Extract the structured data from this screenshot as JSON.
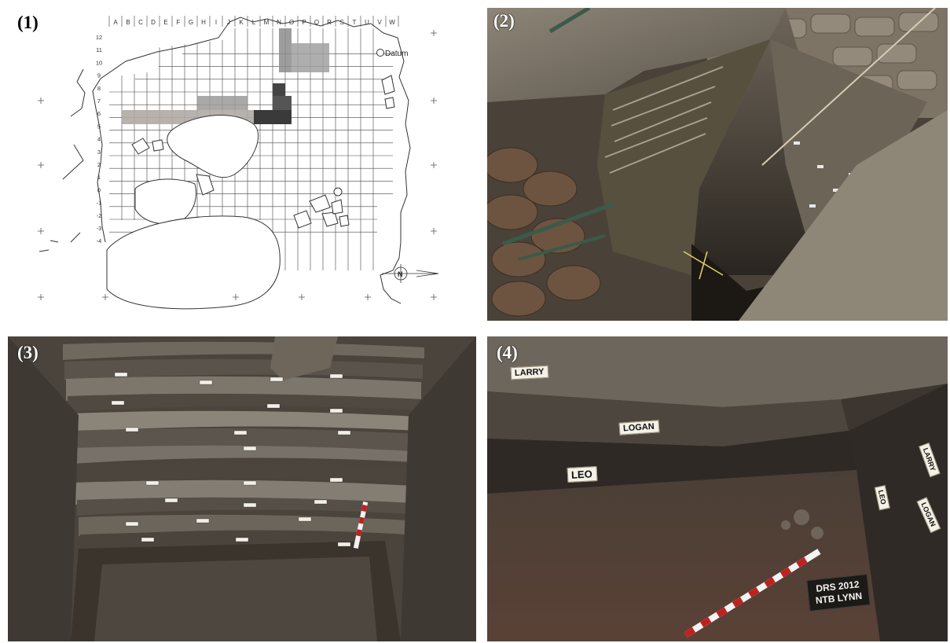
{
  "panels": {
    "p1": {
      "label": "(1)"
    },
    "p2": {
      "label": "(2)"
    },
    "p3": {
      "label": "(3)"
    },
    "p4": {
      "label": "(4)"
    }
  },
  "map": {
    "columns": [
      "A",
      "B",
      "C",
      "D",
      "E",
      "F",
      "G",
      "H",
      "I",
      "J",
      "K",
      "L",
      "M",
      "N",
      "O",
      "P",
      "Q",
      "R",
      "S",
      "T",
      "U",
      "V",
      "W"
    ],
    "rows": [
      "12",
      "11",
      "10",
      "9",
      "8",
      "7",
      "6",
      "5",
      "4",
      "3",
      "2",
      "1",
      "0",
      "-1",
      "-2",
      "-3",
      "-4"
    ],
    "datum_label": "Datum",
    "north_label": "N"
  },
  "panel4_tags": {
    "larry": "LARRY",
    "logan": "LOGAN",
    "leo": "LEO",
    "right_larry": "LARRY",
    "right_leo": "LEO",
    "right_logan": "LOGAN"
  },
  "slate": {
    "line1": "DRS 2012",
    "line2": "NTB LYNN"
  },
  "colors": {
    "sediment_dark": "#3a3530",
    "sediment_light": "#8a8478",
    "sand_bag": "#8b8170",
    "scale_red": "#c0211f"
  }
}
